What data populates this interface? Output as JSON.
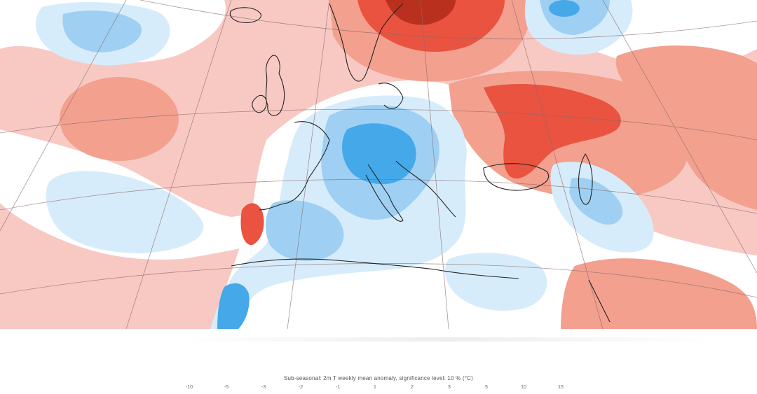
{
  "map": {
    "region": "Europe / North Atlantic",
    "projection": "polar-stereographic",
    "colors": {
      "warm_light": "#f8c9c3",
      "warm_mid": "#f3a08f",
      "warm_strong": "#e9533f",
      "warm_dark": "#b9301f",
      "cold_light": "#d7ecfb",
      "cold_mid": "#9fd0f3",
      "cold_strong": "#45a9e9",
      "neutral": "#ffffff",
      "coast": "#222222",
      "grid": "#8a6a6a"
    }
  },
  "legend": {
    "caption": "Sub-seasonal: 2m T weekly mean anomaly, significance level: 10 % (°C)",
    "ticks": [
      "-10",
      "-5",
      "-3",
      "-2",
      "-1",
      "1",
      "2",
      "3",
      "5",
      "10",
      "15"
    ]
  }
}
